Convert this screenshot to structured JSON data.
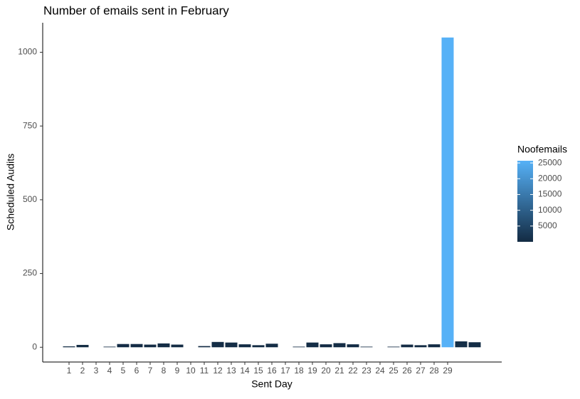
{
  "chart_data": {
    "type": "bar",
    "title": "Number of emails sent in February",
    "x_label": "Sent Day",
    "y_label": "Scheduled Audits",
    "categories": [
      "1",
      "2",
      "3",
      "4",
      "5",
      "6",
      "7",
      "8",
      "9",
      "10",
      "11",
      "12",
      "13",
      "14",
      "15",
      "16",
      "17",
      "18",
      "19",
      "20",
      "21",
      "22",
      "23",
      "24",
      "25",
      "26",
      "27",
      "28",
      "29",
      null,
      null
    ],
    "values": [
      3,
      8,
      null,
      2,
      11,
      11,
      9,
      13,
      9,
      null,
      4,
      18,
      16,
      10,
      7,
      12,
      null,
      2,
      16,
      10,
      14,
      10,
      2,
      null,
      2,
      9,
      7,
      10,
      1050,
      20,
      17
    ],
    "color_title": "Noofemails",
    "color_values": [
      80,
      200,
      null,
      50,
      280,
      280,
      230,
      330,
      230,
      null,
      100,
      450,
      400,
      250,
      180,
      300,
      null,
      50,
      400,
      250,
      350,
      250,
      50,
      null,
      50,
      230,
      180,
      250,
      25700,
      500,
      430
    ],
    "color_range": [
      "#132B43",
      "#56B1F7"
    ],
    "color_lim": [
      0,
      25700
    ],
    "color_ticks": [
      5000,
      10000,
      15000,
      20000,
      25000
    ],
    "ylim": [
      -50,
      1100
    ],
    "yticks": [
      0,
      250,
      500,
      750,
      1000
    ]
  }
}
